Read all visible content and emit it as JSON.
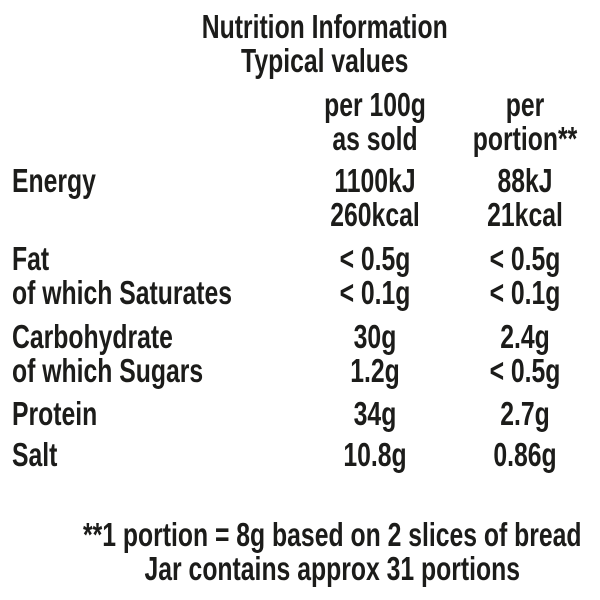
{
  "nutrition": {
    "title": "Nutrition Information",
    "subtitle": "Typical values",
    "columns": {
      "per_100g_line1": "per 100g",
      "per_100g_line2": "as sold",
      "per_portion_line1": "per",
      "per_portion_line2": "portion**"
    },
    "rows": [
      {
        "label": "Energy",
        "per_100g": "1100kJ",
        "per_portion": "88kJ"
      },
      {
        "label": "",
        "per_100g": "260kcal",
        "per_portion": "21kcal"
      },
      {
        "label": "Fat",
        "per_100g": "< 0.5g",
        "per_portion": "< 0.5g"
      },
      {
        "label": "of which Saturates",
        "per_100g": "< 0.1g",
        "per_portion": "< 0.1g"
      },
      {
        "label": "Carbohydrate",
        "per_100g": "30g",
        "per_portion": "2.4g"
      },
      {
        "label": "of which Sugars",
        "per_100g": "1.2g",
        "per_portion": "< 0.5g"
      },
      {
        "label": "Protein",
        "per_100g": "34g",
        "per_portion": "2.7g"
      },
      {
        "label": "Salt",
        "per_100g": "10.8g",
        "per_portion": "0.86g"
      }
    ],
    "footnotes": {
      "line1": "**1 portion = 8g based on 2 slices of bread",
      "line2": "Jar contains approx 31 portions"
    },
    "colors": {
      "text": "#1c1c1a",
      "background": "#ffffff"
    }
  }
}
